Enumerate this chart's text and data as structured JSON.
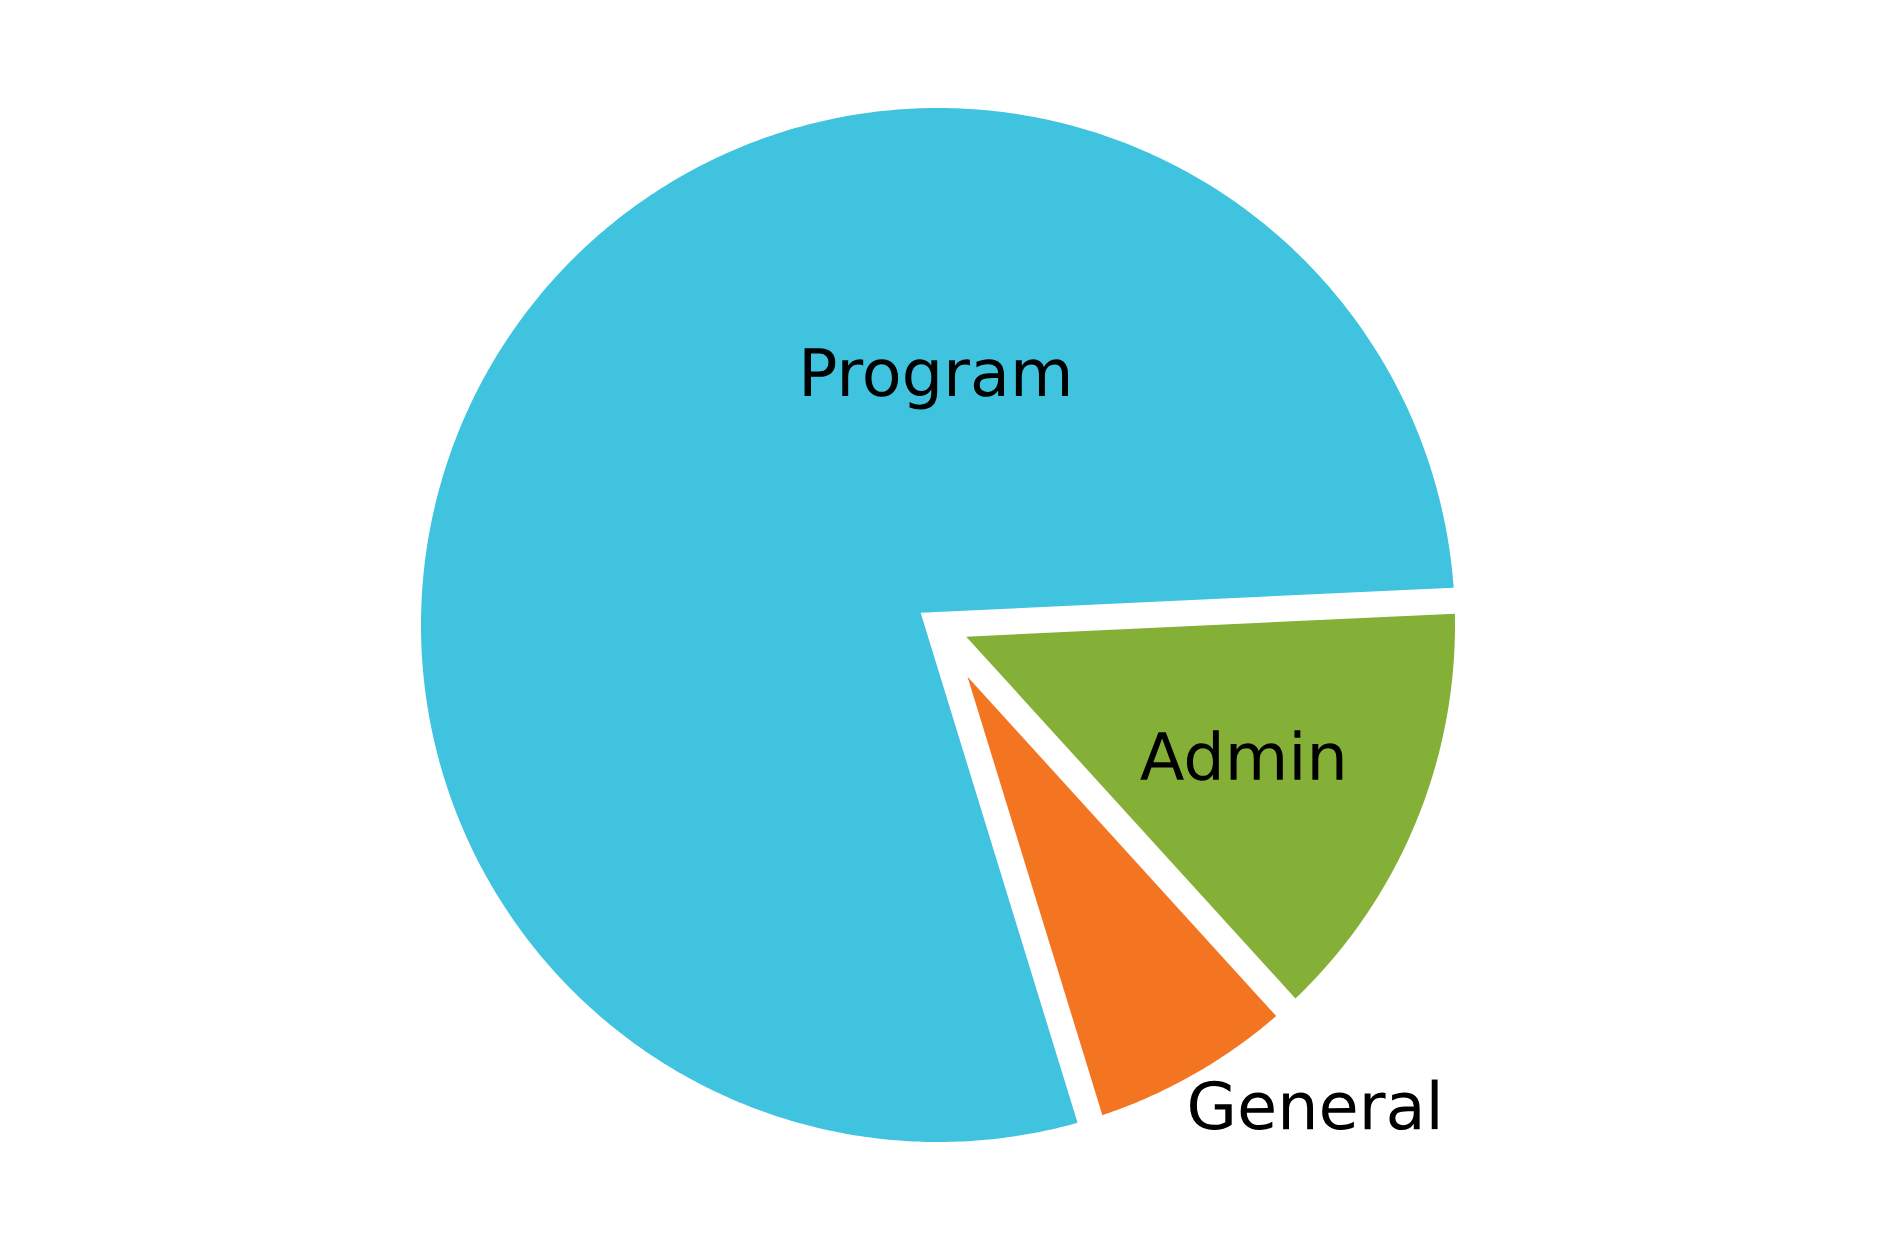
{
  "chart_data": {
    "type": "pie",
    "categories": [
      "Program",
      "Admin",
      "General"
    ],
    "values": [
      79,
      14,
      7
    ],
    "colors": [
      "#3fc3df",
      "#84b038",
      "#f47521"
    ]
  }
}
